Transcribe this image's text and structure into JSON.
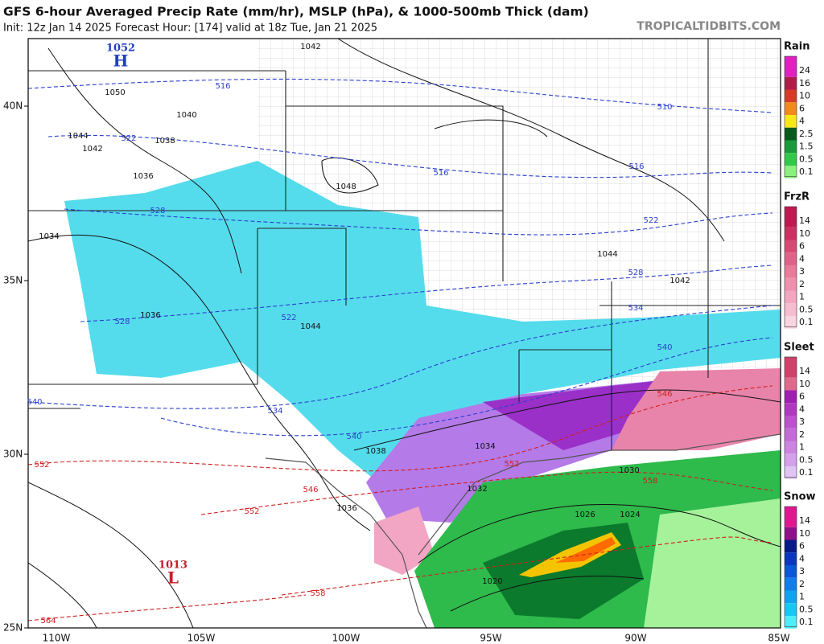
{
  "header": {
    "title": "GFS 6-hour Averaged Precip Rate (mm/hr), MSLP (hPa), & 1000-500mb Thick (dam)",
    "subtitle": "Init: 12z Jan 14 2025   Forecast Hour: [174]   valid at 18z Tue, Jan 21 2025",
    "watermark": "TROPICALTIDBITS.COM"
  },
  "lat_labels": [
    "40N",
    "35N",
    "30N",
    "25N"
  ],
  "lon_labels": [
    "110W",
    "105W",
    "100W",
    "95W",
    "90W",
    "85W"
  ],
  "centers": [
    {
      "pressure": "1052",
      "letter": "H",
      "color": "#1f3fbf"
    },
    {
      "pressure": "1013",
      "letter": "L",
      "color": "#c0202a"
    }
  ],
  "isobar_labels": [
    "1042",
    "1050",
    "1040",
    "1044",
    "1038",
    "1042",
    "1036",
    "1048",
    "1034",
    "1044",
    "1042",
    "1036",
    "1044",
    "1038",
    "1034",
    "1032",
    "1036",
    "1030",
    "1026",
    "1024",
    "1020"
  ],
  "thickness_labels": [
    "516",
    "510",
    "522",
    "516",
    "516",
    "528",
    "522",
    "528",
    "534",
    "522",
    "528",
    "540",
    "540",
    "534",
    "546",
    "540",
    "552",
    "552",
    "546",
    "552",
    "558",
    "558",
    "564"
  ],
  "legends": [
    {
      "title": "Rain",
      "levels": [
        {
          "label": 24,
          "color": "#e020c0"
        },
        {
          "label": 16,
          "color": "#b01c4a"
        },
        {
          "label": 10,
          "color": "#d83a2a"
        },
        {
          "label": 6,
          "color": "#f08a1c"
        },
        {
          "label": 4,
          "color": "#f8e81a"
        },
        {
          "label": 2.5,
          "color": "#0a5a1e"
        },
        {
          "label": 1.5,
          "color": "#1a9a3a"
        },
        {
          "label": 0.5,
          "color": "#32c84a"
        },
        {
          "label": 0.1,
          "color": "#8cf080"
        }
      ]
    },
    {
      "title": "FrzR",
      "levels": [
        {
          "label": 14,
          "color": "#c01850"
        },
        {
          "label": 10,
          "color": "#cc3062"
        },
        {
          "label": 6,
          "color": "#d84a76"
        },
        {
          "label": 4,
          "color": "#e0628a"
        },
        {
          "label": 3,
          "color": "#e87a9c"
        },
        {
          "label": 2,
          "color": "#ee90ae"
        },
        {
          "label": 1,
          "color": "#f2a6bf"
        },
        {
          "label": 0.5,
          "color": "#f6bccf"
        },
        {
          "label": 0.1,
          "color": "#fad4e0"
        }
      ]
    },
    {
      "title": "Sleet",
      "levels": [
        {
          "label": 14,
          "color": "#d0406a"
        },
        {
          "label": 10,
          "color": "#e06a8e"
        },
        {
          "label": 6,
          "color": "#a01eb0"
        },
        {
          "label": 4,
          "color": "#b038c0"
        },
        {
          "label": 3,
          "color": "#bc52cc"
        },
        {
          "label": 2,
          "color": "#c46ad6"
        },
        {
          "label": 1,
          "color": "#cc84e0"
        },
        {
          "label": 0.5,
          "color": "#d4a0ea"
        },
        {
          "label": 0.1,
          "color": "#e0c4f4"
        }
      ]
    },
    {
      "title": "Snow",
      "levels": [
        {
          "label": 14,
          "color": "#e01890"
        },
        {
          "label": 10,
          "color": "#90108a"
        },
        {
          "label": 6,
          "color": "#081a8a"
        },
        {
          "label": 4,
          "color": "#0a36c0"
        },
        {
          "label": 3,
          "color": "#0a58d8"
        },
        {
          "label": 2,
          "color": "#107ee8"
        },
        {
          "label": 1,
          "color": "#10a4f0"
        },
        {
          "label": 0.5,
          "color": "#18c8f4"
        },
        {
          "label": 0.1,
          "color": "#50ecfa"
        }
      ]
    }
  ]
}
